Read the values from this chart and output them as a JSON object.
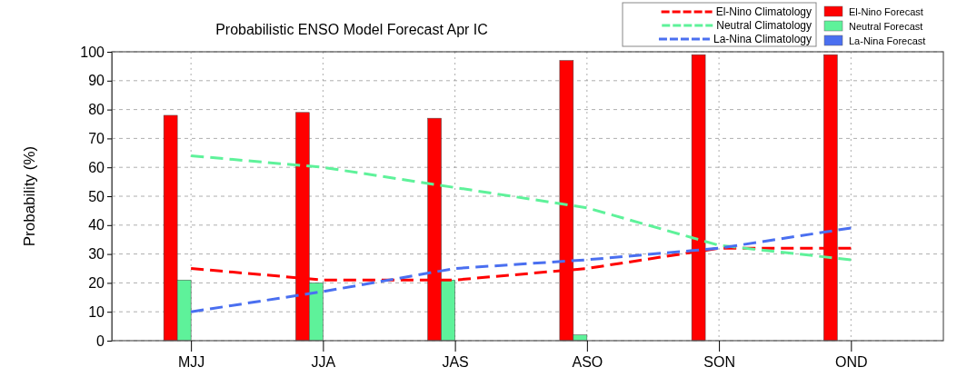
{
  "chart_data": {
    "type": "bar",
    "title": "Probabilistic ENSO Model Forecast  Apr IC",
    "ylabel": "Probability (%)",
    "categories": [
      "MJJ",
      "JJA",
      "JAS",
      "ASO",
      "SON",
      "OND"
    ],
    "ylim": [
      0,
      100
    ],
    "yticks": [
      0,
      10,
      20,
      30,
      40,
      50,
      60,
      70,
      80,
      90,
      100
    ],
    "grid": true,
    "legend": "top right",
    "series": [
      {
        "name": "El-Nino Climatology",
        "type": "line",
        "line_style": "dashed",
        "color": "#ff0000",
        "values": [
          25,
          21,
          21,
          25,
          32,
          32
        ]
      },
      {
        "name": "Neutral Climatology",
        "type": "line",
        "line_style": "dashed",
        "color": "#5ef29a",
        "values": [
          64,
          60,
          53,
          46,
          33,
          28
        ]
      },
      {
        "name": "La-Nina Climatology",
        "type": "line",
        "line_style": "dashed",
        "color": "#4a6ff0",
        "values": [
          10,
          17,
          25,
          28,
          32,
          39
        ]
      },
      {
        "name": "El-Nino Forecast",
        "color": "#ff0000",
        "values": [
          78,
          79,
          77,
          97,
          99,
          99
        ]
      },
      {
        "name": "Neutral Forecast",
        "color": "#5ef29a",
        "values": [
          21,
          20,
          21,
          2,
          0,
          0
        ]
      },
      {
        "name": "La-Nina Forecast",
        "color": "#4a6ff0",
        "values": [
          0,
          0,
          0,
          0,
          0,
          0
        ]
      }
    ]
  }
}
